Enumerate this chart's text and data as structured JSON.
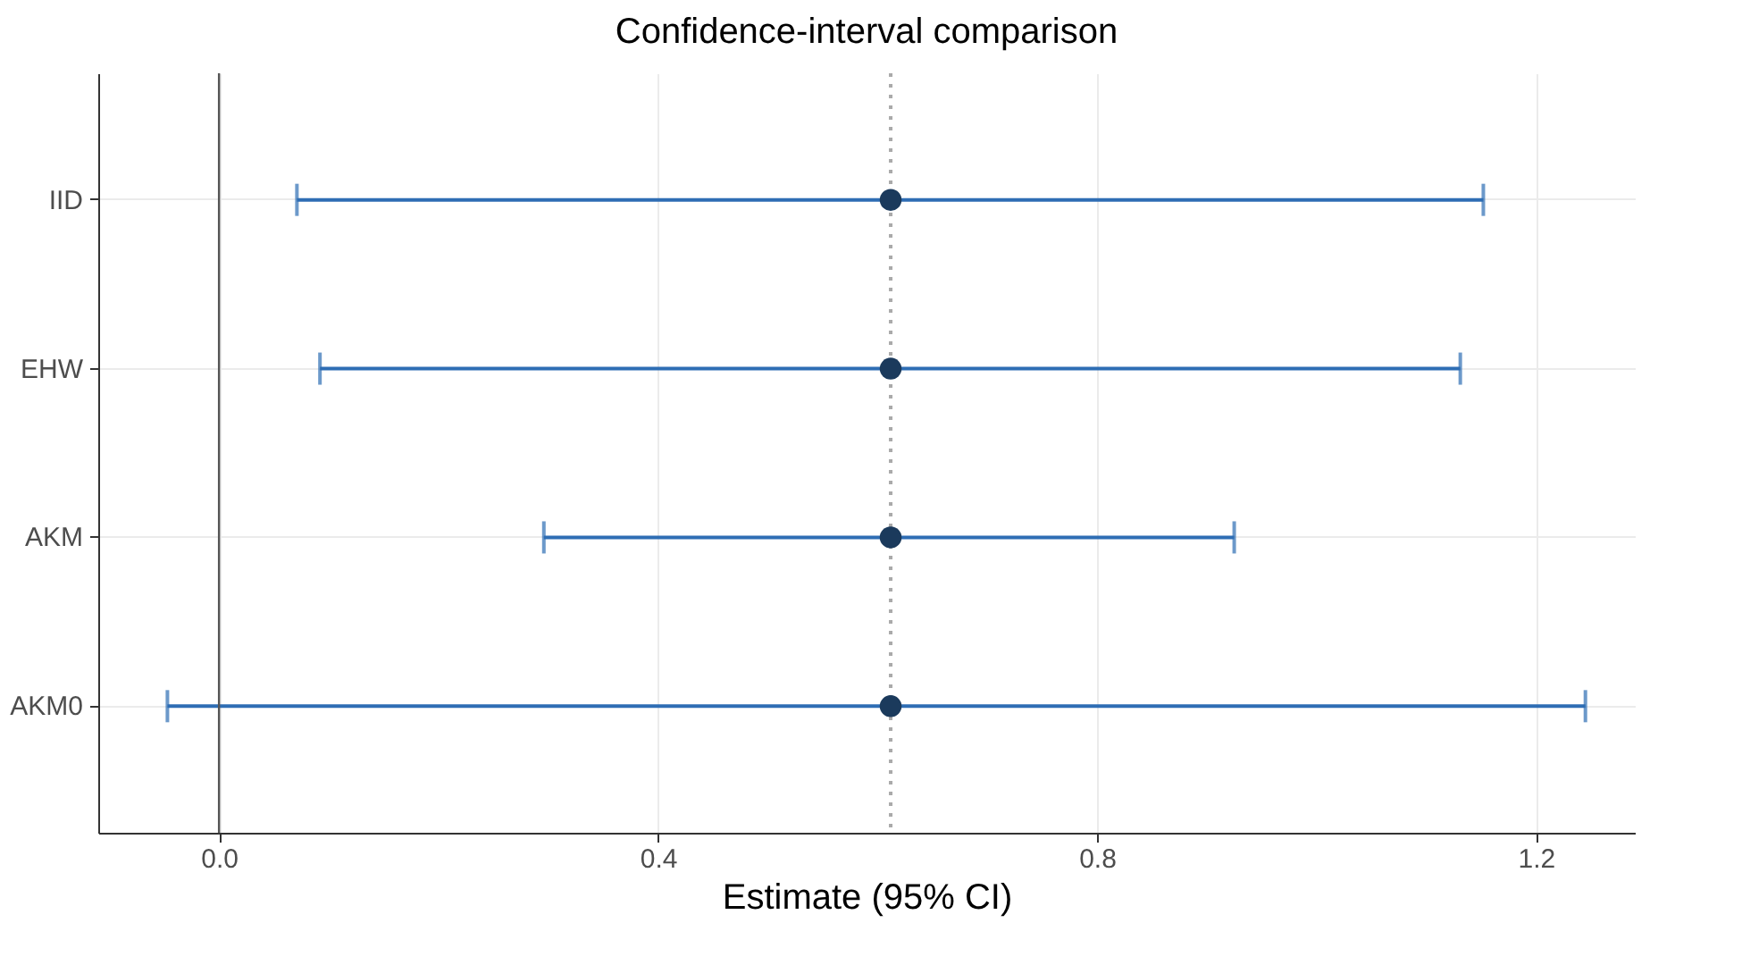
{
  "chart_data": {
    "type": "scatter",
    "title": "Confidence-interval comparison",
    "xlabel": "Estimate (95% CI)",
    "orientation": "horizontal",
    "categories": [
      "IID",
      "EHW",
      "AKM",
      "AKM0"
    ],
    "series": [
      {
        "color": "#1b3a5c",
        "values": [
          0.612,
          0.612,
          0.612,
          0.612
        ],
        "errors": [
          [
            0.071,
            1.152
          ],
          [
            0.092,
            1.131
          ],
          [
            0.296,
            0.925
          ],
          [
            -0.047,
            1.245
          ]
        ]
      }
    ],
    "xlim": [
      -0.11,
      1.29
    ],
    "xticks": [
      {
        "value": 0,
        "label": "0.0"
      },
      0.4,
      0.8,
      1.2
    ],
    "grid": true,
    "marker": "circle",
    "ref_lines": [
      {
        "axis": "x",
        "value": 0,
        "color": "#555555",
        "line_style": "solid"
      },
      {
        "axis": "x",
        "value": 0.612,
        "color": "#aaaaaa",
        "line_style": "dotted"
      }
    ]
  }
}
